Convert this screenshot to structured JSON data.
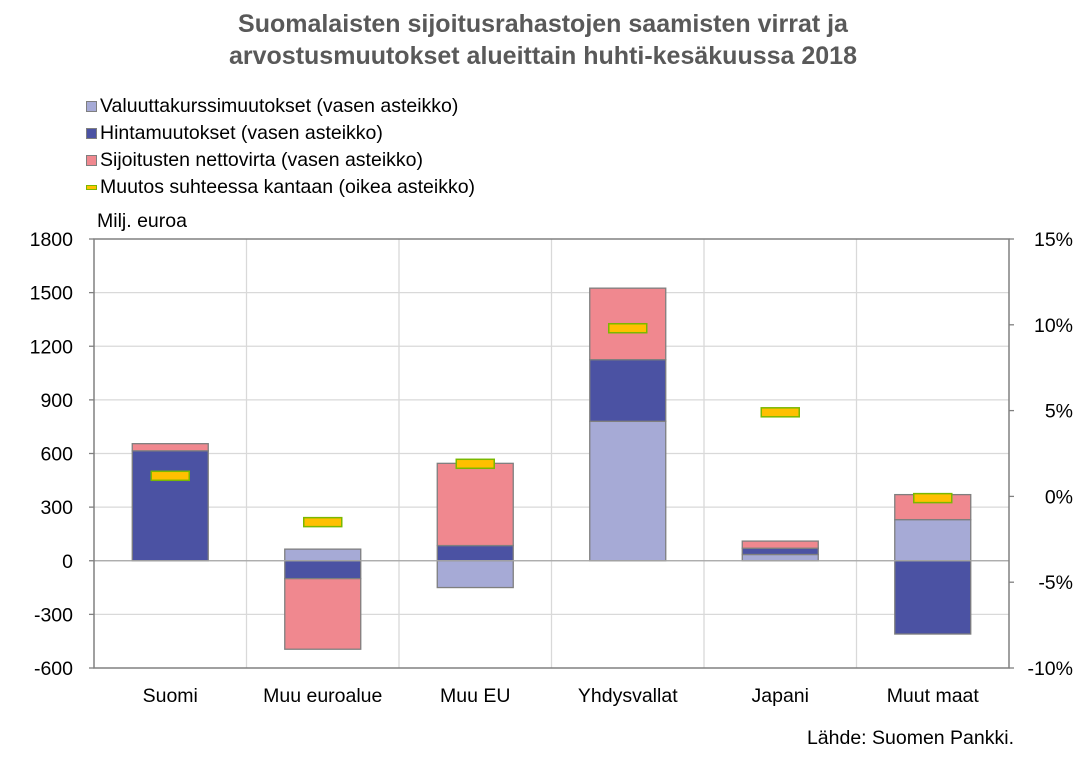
{
  "title_lines": [
    "Suomalaisten sijoitusrahastojen saamisten virrat ja",
    "arvostusmuutokset alueittain huhti-kesäkuussa 2018"
  ],
  "unit_label": "Milj. euroa",
  "source_text": "Lähde: Suomen Pankki.",
  "colors": {
    "valuutta": "#a6aad6",
    "hinta": "#4b52a3",
    "netto": "#f0888f",
    "marker_fill": "#ffc000",
    "marker_border": "#7ab800",
    "bar_border": "#7f7f7f",
    "grid": "#d9d9d9",
    "title": "#595959"
  },
  "legend": [
    {
      "key": "valuutta",
      "label": "Valuuttakurssimuutokset (vasen asteikko)"
    },
    {
      "key": "hinta",
      "label": "Hintamuutokset (vasen asteikko)"
    },
    {
      "key": "netto",
      "label": "Sijoitusten nettovirta (vasen asteikko)"
    },
    {
      "key": "muutos",
      "label": "Muutos suhteessa kantaan (oikea asteikko)"
    }
  ],
  "chart_data": {
    "type": "bar",
    "stacked": true,
    "title": "Suomalaisten sijoitusrahastojen saamisten virrat ja arvostusmuutokset alueittain huhti-kesäkuussa 2018",
    "categories": [
      "Suomi",
      "Muu euroalue",
      "Muu EU",
      "Yhdysvallat",
      "Japani",
      "Muut maat"
    ],
    "series": [
      {
        "key": "valuutta",
        "name": "Valuuttakurssimuutokset (vasen asteikko)",
        "axis": "left",
        "values": [
          0,
          65,
          -150,
          780,
          35,
          230
        ]
      },
      {
        "key": "hinta",
        "name": "Hintamuutokset (vasen asteikko)",
        "axis": "left",
        "values": [
          615,
          -100,
          85,
          345,
          35,
          -410
        ]
      },
      {
        "key": "netto",
        "name": "Sijoitusten nettovirta (vasen asteikko)",
        "axis": "left",
        "values": [
          40,
          -395,
          460,
          400,
          40,
          140
        ]
      },
      {
        "key": "muutos",
        "name": "Muutos suhteessa kantaan (oikea asteikko)",
        "axis": "right",
        "type": "marker",
        "values": [
          1.2,
          -1.5,
          1.9,
          9.8,
          4.9,
          -0.1
        ]
      }
    ],
    "ylabel": "Milj. euroa",
    "ylim": [
      -600,
      1800
    ],
    "yticks": [
      -600,
      -300,
      0,
      300,
      600,
      900,
      1200,
      1500,
      1800
    ],
    "ytick_labels": [
      "-600",
      "-300",
      "0",
      "300",
      "600",
      "900",
      "1200",
      "1500",
      "1800"
    ],
    "y2lim": [
      -10,
      15
    ],
    "y2ticks": [
      -10,
      -5,
      0,
      5,
      10,
      15
    ],
    "y2tick_labels": [
      "-10%",
      "-5%",
      "0%",
      "5%",
      "10%",
      "15%"
    ],
    "grid": true,
    "legend_position": "top-left"
  }
}
